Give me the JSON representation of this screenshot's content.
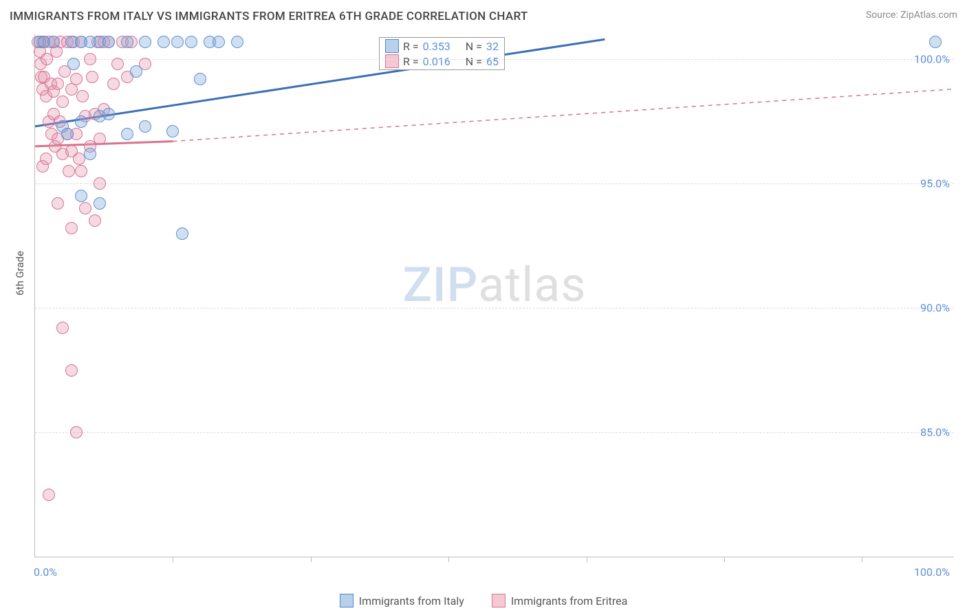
{
  "title": "IMMIGRANTS FROM ITALY VS IMMIGRANTS FROM ERITREA 6TH GRADE CORRELATION CHART",
  "source_label": "Source: ZipAtlas.com",
  "y_axis_title": "6th Grade",
  "watermark_a": "ZIP",
  "watermark_b": "atlas",
  "chart": {
    "type": "scatter_with_regression",
    "xlim": [
      0,
      100
    ],
    "ylim": [
      80,
      101
    ],
    "x_ticks": [
      0,
      100
    ],
    "x_tick_labels": [
      "0.0%",
      "100.0%"
    ],
    "x_minor_ticks": [
      15,
      30,
      45,
      60,
      75,
      90
    ],
    "y_ticks": [
      85,
      90,
      95,
      100
    ],
    "y_tick_labels": [
      "85.0%",
      "90.0%",
      "95.0%",
      "100.0%"
    ],
    "background_color": "#ffffff",
    "grid_color": "#dddddd",
    "series": [
      {
        "name": "Immigrants from Italy",
        "swatch_fill": "#b9d0ec",
        "swatch_border": "#4f86c6",
        "point_fill": "rgba(120,165,215,0.35)",
        "point_border": "#5b8fd6",
        "line_color": "#3b6fb5",
        "line_dash": "none",
        "r_value": "0.353",
        "n_value": "32",
        "regression": {
          "x1": 0,
          "y1": 97.3,
          "x2": 62,
          "y2": 100.8
        },
        "points": [
          [
            0.5,
            100.7
          ],
          [
            1,
            100.7
          ],
          [
            2,
            100.7
          ],
          [
            4,
            100.7
          ],
          [
            4.2,
            99.8
          ],
          [
            5,
            100.7
          ],
          [
            6,
            100.7
          ],
          [
            7,
            100.7
          ],
          [
            8,
            100.7
          ],
          [
            10,
            100.7
          ],
          [
            11,
            99.5
          ],
          [
            12,
            100.7
          ],
          [
            14,
            100.7
          ],
          [
            15.5,
            100.7
          ],
          [
            17,
            100.7
          ],
          [
            18,
            99.2
          ],
          [
            19,
            100.7
          ],
          [
            20,
            100.7
          ],
          [
            22,
            100.7
          ],
          [
            3,
            97.3
          ],
          [
            3.5,
            97.0
          ],
          [
            5,
            97.5
          ],
          [
            6,
            96.2
          ],
          [
            7,
            97.7
          ],
          [
            8,
            97.8
          ],
          [
            10,
            97.0
          ],
          [
            12,
            97.3
          ],
          [
            15,
            97.1
          ],
          [
            5,
            94.5
          ],
          [
            7,
            94.2
          ],
          [
            16,
            93.0
          ],
          [
            98,
            100.7
          ]
        ]
      },
      {
        "name": "Immigrants from Eritrea",
        "swatch_fill": "#f5c9d3",
        "swatch_border": "#d7738f",
        "point_fill": "rgba(230,150,175,0.35)",
        "point_border": "#d7738f",
        "line_color": "#d7738f",
        "line_dash": "dashed",
        "r_value": "0.016",
        "n_value": "65",
        "regression_solid": {
          "x1": 0,
          "y1": 96.5,
          "x2": 15,
          "y2": 96.7
        },
        "regression_dashed": {
          "x1": 15,
          "y1": 96.7,
          "x2": 100,
          "y2": 98.8
        },
        "points": [
          [
            0.3,
            100.7
          ],
          [
            0.5,
            100.3
          ],
          [
            0.6,
            99.8
          ],
          [
            0.7,
            99.3
          ],
          [
            0.8,
            98.8
          ],
          [
            0.8,
            100.7
          ],
          [
            1,
            100.7
          ],
          [
            1,
            99.3
          ],
          [
            1.2,
            98.5
          ],
          [
            1.3,
            100.0
          ],
          [
            1.5,
            97.5
          ],
          [
            1.5,
            100.7
          ],
          [
            1.7,
            99.0
          ],
          [
            1.8,
            97.0
          ],
          [
            2,
            100.7
          ],
          [
            2,
            98.7
          ],
          [
            2,
            97.8
          ],
          [
            2.2,
            96.5
          ],
          [
            2.3,
            100.3
          ],
          [
            2.5,
            99.0
          ],
          [
            2.5,
            96.8
          ],
          [
            2.7,
            97.5
          ],
          [
            2.8,
            100.7
          ],
          [
            3,
            98.3
          ],
          [
            3,
            96.2
          ],
          [
            3.2,
            99.5
          ],
          [
            3.5,
            97.0
          ],
          [
            3.5,
            100.7
          ],
          [
            3.7,
            95.5
          ],
          [
            4,
            98.8
          ],
          [
            4,
            96.3
          ],
          [
            4.2,
            100.7
          ],
          [
            4.5,
            97.0
          ],
          [
            4.5,
            99.2
          ],
          [
            4.8,
            96.0
          ],
          [
            5,
            100.7
          ],
          [
            5,
            95.5
          ],
          [
            5.2,
            98.5
          ],
          [
            5.5,
            97.7
          ],
          [
            5.5,
            94.0
          ],
          [
            6,
            100.0
          ],
          [
            6,
            96.5
          ],
          [
            6.2,
            99.3
          ],
          [
            6.5,
            93.5
          ],
          [
            6.5,
            97.8
          ],
          [
            6.8,
            100.7
          ],
          [
            7,
            95.0
          ],
          [
            7,
            96.8
          ],
          [
            7.5,
            98.0
          ],
          [
            7.5,
            100.7
          ],
          [
            8,
            100.7
          ],
          [
            8.5,
            99.0
          ],
          [
            9,
            99.8
          ],
          [
            9.5,
            100.7
          ],
          [
            10,
            99.3
          ],
          [
            10.5,
            100.7
          ],
          [
            12,
            99.8
          ],
          [
            4,
            93.2
          ],
          [
            2.5,
            94.2
          ],
          [
            3,
            89.2
          ],
          [
            4,
            87.5
          ],
          [
            4.5,
            85.0
          ],
          [
            1.5,
            82.5
          ],
          [
            0.8,
            95.7
          ],
          [
            1.2,
            96.0
          ]
        ]
      }
    ]
  },
  "legend_series1_label": "Immigrants from Italy",
  "legend_series2_label": "Immigrants from Eritrea",
  "r_label": "R =",
  "n_label": "N ="
}
